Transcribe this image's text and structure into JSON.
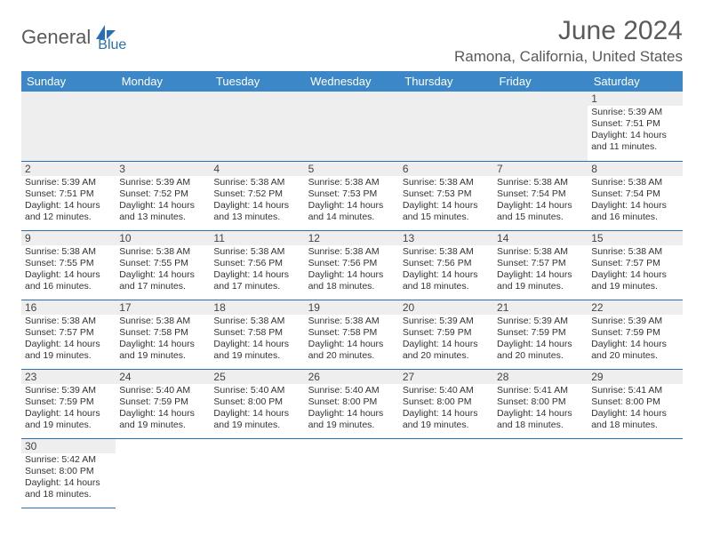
{
  "brand": {
    "part1": "General",
    "part2": "Blue",
    "logo_color": "#2a6fb5",
    "text_color": "#5a5a5a"
  },
  "title": "June 2024",
  "location": "Ramona, California, United States",
  "colors": {
    "header_bg": "#3b87c8",
    "header_text": "#ffffff",
    "border": "#2a6fb5",
    "daynum_bg": "#eeeeee",
    "body_text": "#333333"
  },
  "day_headers": [
    "Sunday",
    "Monday",
    "Tuesday",
    "Wednesday",
    "Thursday",
    "Friday",
    "Saturday"
  ],
  "weeks": [
    [
      null,
      null,
      null,
      null,
      null,
      null,
      {
        "n": "1",
        "sr": "5:39 AM",
        "ss": "7:51 PM",
        "dl": "14 hours and 11 minutes."
      }
    ],
    [
      {
        "n": "2",
        "sr": "5:39 AM",
        "ss": "7:51 PM",
        "dl": "14 hours and 12 minutes."
      },
      {
        "n": "3",
        "sr": "5:39 AM",
        "ss": "7:52 PM",
        "dl": "14 hours and 13 minutes."
      },
      {
        "n": "4",
        "sr": "5:38 AM",
        "ss": "7:52 PM",
        "dl": "14 hours and 13 minutes."
      },
      {
        "n": "5",
        "sr": "5:38 AM",
        "ss": "7:53 PM",
        "dl": "14 hours and 14 minutes."
      },
      {
        "n": "6",
        "sr": "5:38 AM",
        "ss": "7:53 PM",
        "dl": "14 hours and 15 minutes."
      },
      {
        "n": "7",
        "sr": "5:38 AM",
        "ss": "7:54 PM",
        "dl": "14 hours and 15 minutes."
      },
      {
        "n": "8",
        "sr": "5:38 AM",
        "ss": "7:54 PM",
        "dl": "14 hours and 16 minutes."
      }
    ],
    [
      {
        "n": "9",
        "sr": "5:38 AM",
        "ss": "7:55 PM",
        "dl": "14 hours and 16 minutes."
      },
      {
        "n": "10",
        "sr": "5:38 AM",
        "ss": "7:55 PM",
        "dl": "14 hours and 17 minutes."
      },
      {
        "n": "11",
        "sr": "5:38 AM",
        "ss": "7:56 PM",
        "dl": "14 hours and 17 minutes."
      },
      {
        "n": "12",
        "sr": "5:38 AM",
        "ss": "7:56 PM",
        "dl": "14 hours and 18 minutes."
      },
      {
        "n": "13",
        "sr": "5:38 AM",
        "ss": "7:56 PM",
        "dl": "14 hours and 18 minutes."
      },
      {
        "n": "14",
        "sr": "5:38 AM",
        "ss": "7:57 PM",
        "dl": "14 hours and 19 minutes."
      },
      {
        "n": "15",
        "sr": "5:38 AM",
        "ss": "7:57 PM",
        "dl": "14 hours and 19 minutes."
      }
    ],
    [
      {
        "n": "16",
        "sr": "5:38 AM",
        "ss": "7:57 PM",
        "dl": "14 hours and 19 minutes."
      },
      {
        "n": "17",
        "sr": "5:38 AM",
        "ss": "7:58 PM",
        "dl": "14 hours and 19 minutes."
      },
      {
        "n": "18",
        "sr": "5:38 AM",
        "ss": "7:58 PM",
        "dl": "14 hours and 19 minutes."
      },
      {
        "n": "19",
        "sr": "5:38 AM",
        "ss": "7:58 PM",
        "dl": "14 hours and 20 minutes."
      },
      {
        "n": "20",
        "sr": "5:39 AM",
        "ss": "7:59 PM",
        "dl": "14 hours and 20 minutes."
      },
      {
        "n": "21",
        "sr": "5:39 AM",
        "ss": "7:59 PM",
        "dl": "14 hours and 20 minutes."
      },
      {
        "n": "22",
        "sr": "5:39 AM",
        "ss": "7:59 PM",
        "dl": "14 hours and 20 minutes."
      }
    ],
    [
      {
        "n": "23",
        "sr": "5:39 AM",
        "ss": "7:59 PM",
        "dl": "14 hours and 19 minutes."
      },
      {
        "n": "24",
        "sr": "5:40 AM",
        "ss": "7:59 PM",
        "dl": "14 hours and 19 minutes."
      },
      {
        "n": "25",
        "sr": "5:40 AM",
        "ss": "8:00 PM",
        "dl": "14 hours and 19 minutes."
      },
      {
        "n": "26",
        "sr": "5:40 AM",
        "ss": "8:00 PM",
        "dl": "14 hours and 19 minutes."
      },
      {
        "n": "27",
        "sr": "5:40 AM",
        "ss": "8:00 PM",
        "dl": "14 hours and 19 minutes."
      },
      {
        "n": "28",
        "sr": "5:41 AM",
        "ss": "8:00 PM",
        "dl": "14 hours and 18 minutes."
      },
      {
        "n": "29",
        "sr": "5:41 AM",
        "ss": "8:00 PM",
        "dl": "14 hours and 18 minutes."
      }
    ],
    [
      {
        "n": "30",
        "sr": "5:42 AM",
        "ss": "8:00 PM",
        "dl": "14 hours and 18 minutes."
      },
      null,
      null,
      null,
      null,
      null,
      null
    ]
  ],
  "labels": {
    "sunrise": "Sunrise:",
    "sunset": "Sunset:",
    "daylight": "Daylight:"
  }
}
